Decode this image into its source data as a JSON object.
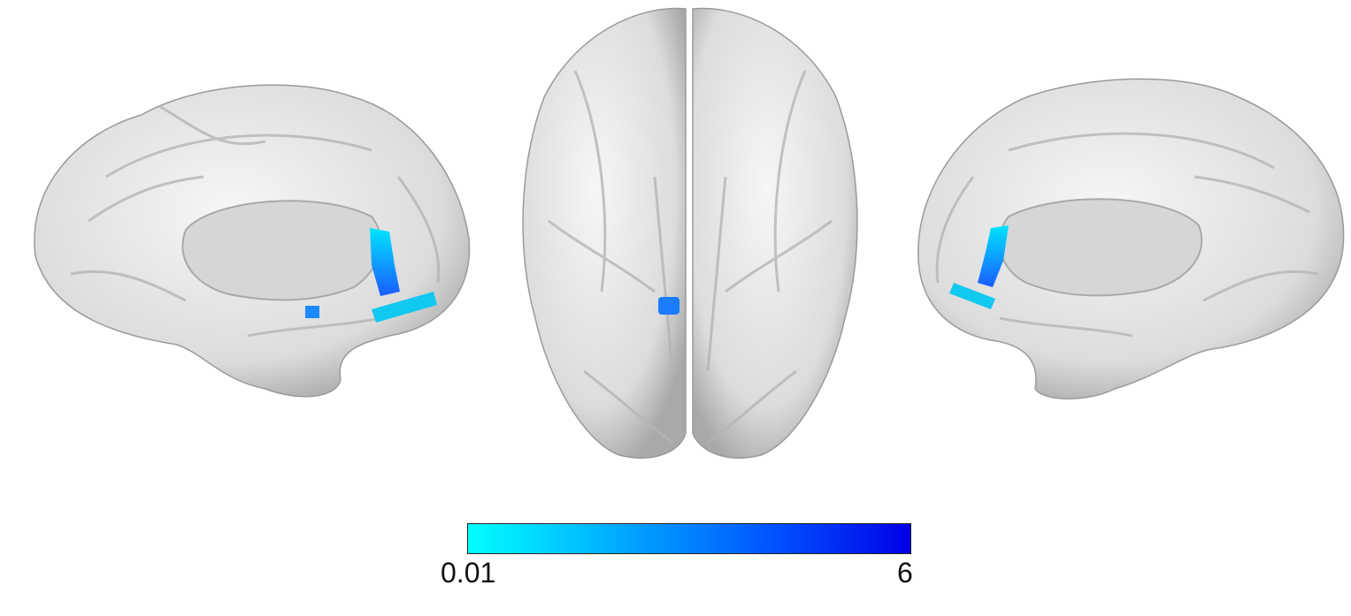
{
  "views": [
    {
      "name": "left-medial-view"
    },
    {
      "name": "ventral-view"
    },
    {
      "name": "right-medial-view"
    }
  ],
  "colorbar": {
    "min_label": "0.01",
    "max_label": "6",
    "color_min": "#00FFFF",
    "color_max": "#0000E6"
  },
  "colors": {
    "surface": "#ececec",
    "surface_shadow": "#b8b8b8",
    "callosum": "#d6d6d6",
    "cluster": "#1e90ff"
  }
}
